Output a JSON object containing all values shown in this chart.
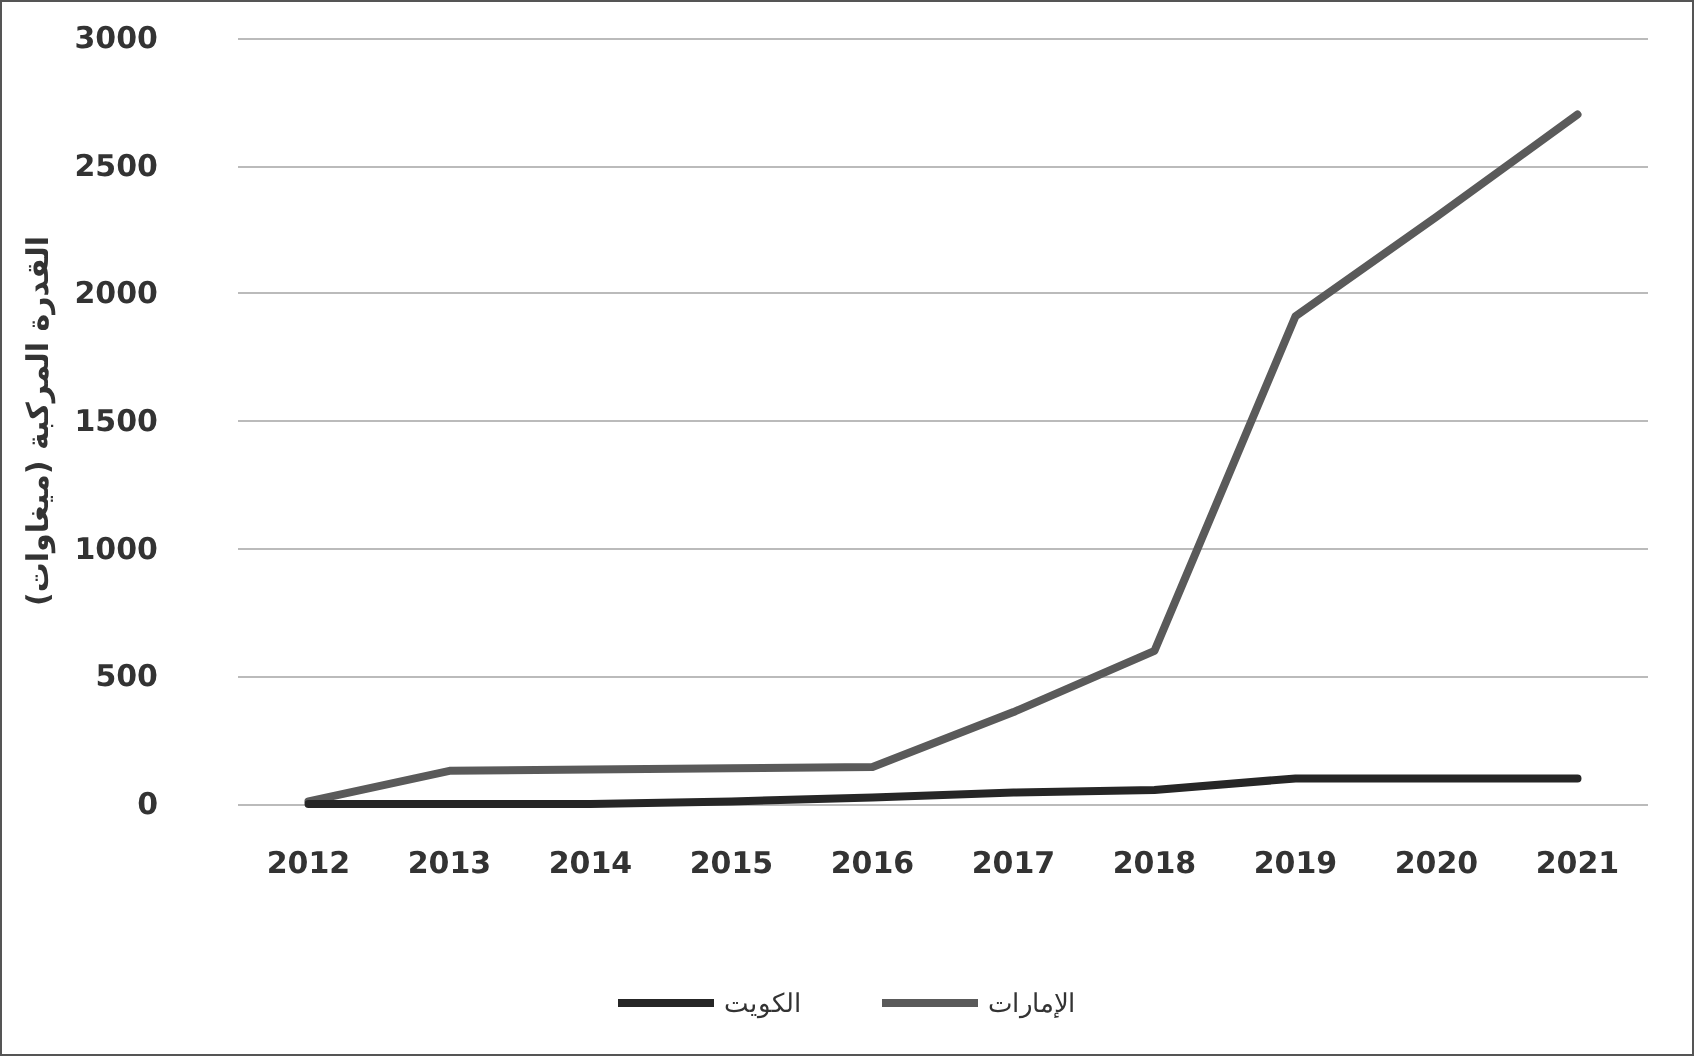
{
  "chart_data": {
    "type": "line",
    "ylabel": "القدرة المركبة (ميغاوات)",
    "categories": [
      "2012",
      "2013",
      "2014",
      "2015",
      "2016",
      "2017",
      "2018",
      "2019",
      "2020",
      "2021"
    ],
    "series": [
      {
        "name": "الإمارات",
        "color": "#5a5a5a",
        "values": [
          10,
          130,
          135,
          140,
          145,
          360,
          600,
          1910,
          2300,
          2700
        ]
      },
      {
        "name": "الكويت",
        "color": "#262626",
        "values": [
          0,
          0,
          0,
          10,
          25,
          45,
          55,
          100,
          100,
          100
        ]
      }
    ],
    "ylim": [
      0,
      3000
    ],
    "yticks": [
      0,
      500,
      1000,
      1500,
      2000,
      2500,
      3000
    ],
    "grid": "y",
    "legend": "bottom",
    "marker": "none",
    "line_style": "solid"
  }
}
